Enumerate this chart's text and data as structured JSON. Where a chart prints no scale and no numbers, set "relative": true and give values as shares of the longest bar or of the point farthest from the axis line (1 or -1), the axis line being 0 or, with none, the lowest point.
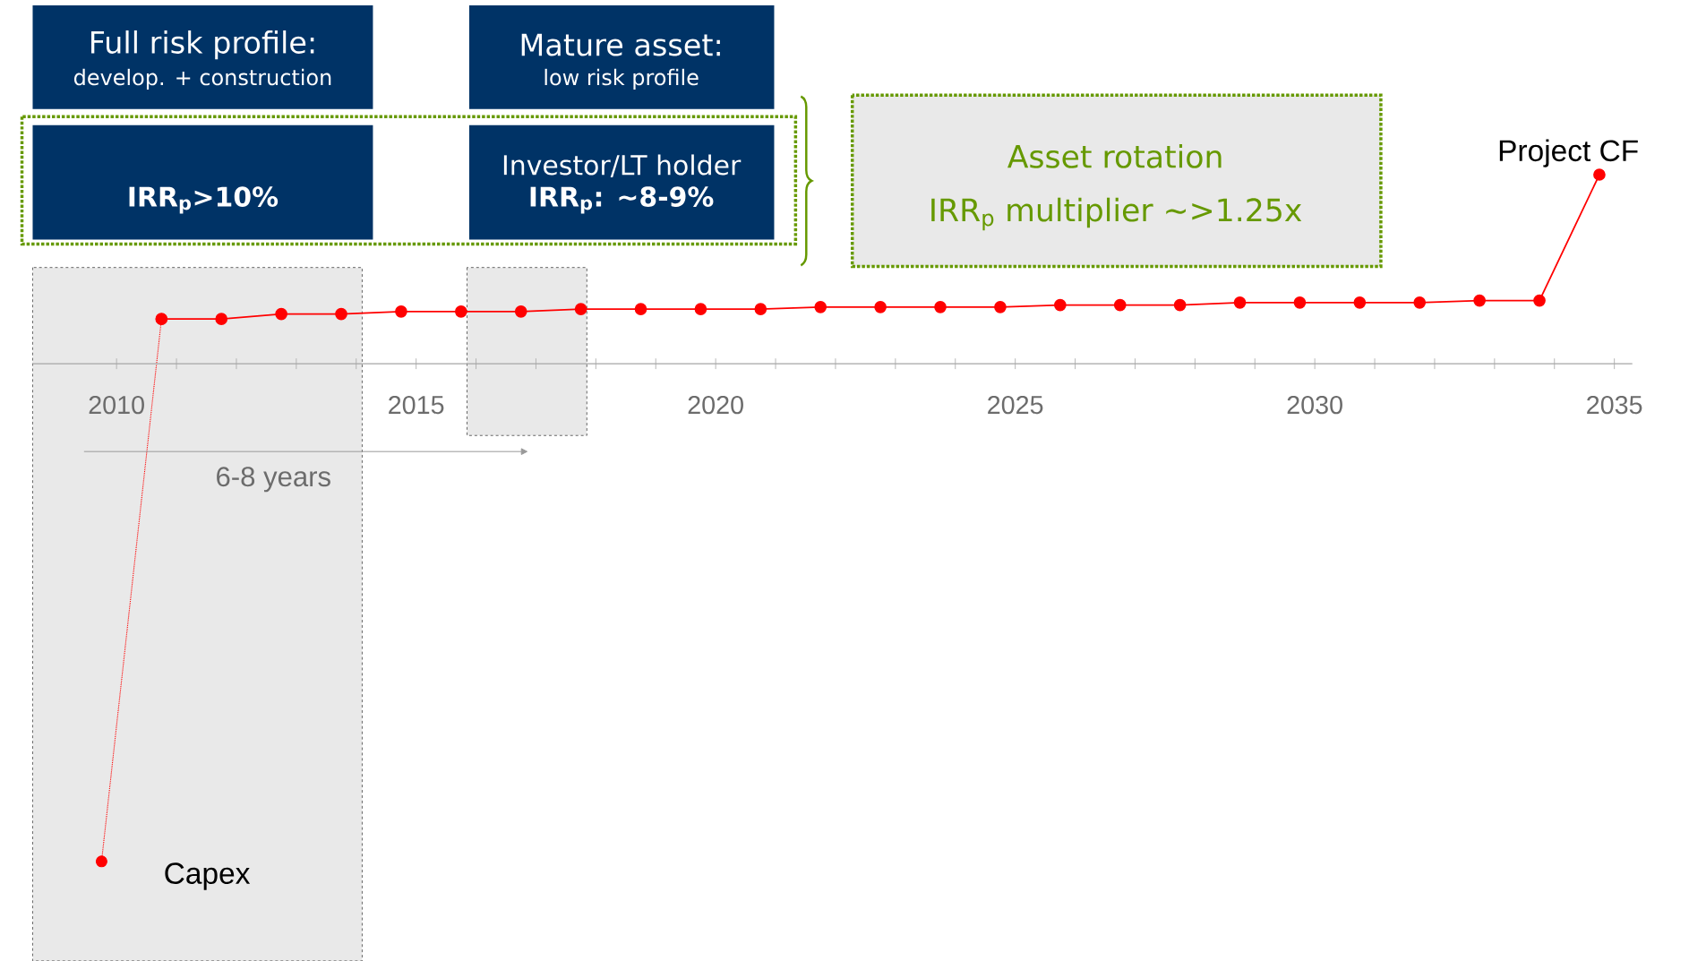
{
  "chart_data": {
    "type": "line",
    "relative": true,
    "marker": "circle",
    "x": [
      2010.75,
      2011.75,
      2012.75,
      2013.75,
      2014.75,
      2015.75,
      2016.75,
      2017.75,
      2018.75,
      2019.75,
      2020.75,
      2021.75,
      2022.75,
      2023.75,
      2024.75,
      2025.75,
      2026.75,
      2027.75,
      2028.75,
      2029.75,
      2030.75,
      2031.75,
      2032.75,
      2033.75,
      2034.75
    ],
    "series": [
      {
        "color": "#ff0000",
        "line_style": "dotted",
        "x": [
          2009.75,
          2010.75
        ],
        "values": [
          -1,
          0.09
        ]
      },
      {
        "color": "#ff0000",
        "line_style": "solid",
        "values": [
          0.09,
          0.09,
          0.1,
          0.1,
          0.105,
          0.105,
          0.105,
          0.11,
          0.11,
          0.11,
          0.11,
          0.114,
          0.114,
          0.114,
          0.114,
          0.118,
          0.118,
          0.118,
          0.123,
          0.123,
          0.123,
          0.123,
          0.127,
          0.127,
          0.38
        ]
      }
    ],
    "xlim": [
      2008.6,
      2035.3
    ],
    "xticks": [
      2010,
      {
        "value": 2011,
        "label": null
      },
      {
        "value": 2012,
        "label": null
      },
      {
        "value": 2013,
        "label": null
      },
      {
        "value": 2014,
        "label": null
      },
      2015,
      {
        "value": 2016,
        "label": null
      },
      {
        "value": 2017,
        "label": null
      },
      {
        "value": 2018,
        "label": null
      },
      {
        "value": 2019,
        "label": null
      },
      2020,
      {
        "value": 2021,
        "label": null
      },
      {
        "value": 2022,
        "label": null
      },
      {
        "value": 2023,
        "label": null
      },
      {
        "value": 2024,
        "label": null
      },
      2025,
      {
        "value": 2026,
        "label": null
      },
      {
        "value": 2027,
        "label": null
      },
      {
        "value": 2028,
        "label": null
      },
      {
        "value": 2029,
        "label": null
      },
      2030,
      {
        "value": 2031,
        "label": null
      },
      {
        "value": 2032,
        "label": null
      },
      {
        "value": 2033,
        "label": null
      },
      {
        "value": 2034,
        "label": null
      },
      2035
    ],
    "bands": [
      {
        "axis": "x",
        "from": 2008.6,
        "to": 2014.1,
        "color": "#e9e9e9"
      },
      {
        "axis": "x",
        "from": 2015.85,
        "to": 2017.85,
        "color": "#e9e9e9"
      }
    ],
    "annotations": [
      "Full risk profile:",
      "develop. + construction",
      "IRR$_{p}$>10%",
      "Mature asset:",
      "low risk profile",
      "Investor/LT holder",
      "IRR$_{p}$: ~8-9%",
      "Asset rotation",
      "IRR$_{p}$ multiplier ~>1.25x",
      "6-8 years",
      {
        "text": "Capex",
        "x": 2009.75,
        "y": -1
      },
      {
        "text": "Project CF",
        "x": 2034.75,
        "y": 0.38
      }
    ]
  }
}
